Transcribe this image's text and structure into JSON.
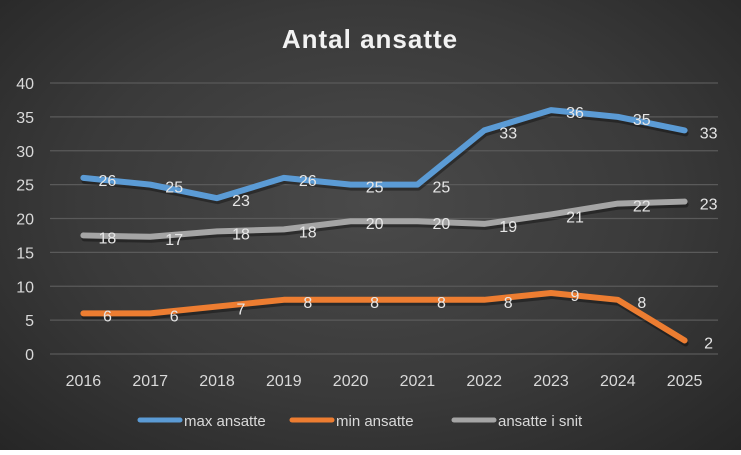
{
  "chart_data": {
    "type": "line",
    "title": "Antal ansatte",
    "xlabel": "",
    "ylabel": "",
    "ylim": [
      0,
      40
    ],
    "yticks": [
      0,
      5,
      10,
      15,
      20,
      25,
      30,
      35,
      40
    ],
    "grid": true,
    "legend": "bottom",
    "categories": [
      "2016",
      "2017",
      "2018",
      "2019",
      "2020",
      "2021",
      "2022",
      "2023",
      "2024",
      "2025"
    ],
    "series": [
      {
        "name": "max ansatte",
        "color": "#5b9bd5",
        "values": [
          26,
          25,
          23,
          26,
          25,
          25,
          33,
          36,
          35,
          33
        ],
        "labels": [
          "26",
          "25",
          "23",
          "26",
          "25",
          "25",
          "33",
          "36",
          "35",
          "33"
        ]
      },
      {
        "name": "min ansatte",
        "color": "#ed7d31",
        "values": [
          6,
          6,
          7,
          8,
          8,
          8,
          8,
          9,
          8,
          2
        ],
        "labels": [
          "6",
          "6",
          "7",
          "8",
          "8",
          "8",
          "8",
          "9",
          "8",
          "2"
        ]
      },
      {
        "name": "ansatte i snit",
        "color": "#a5a5a5",
        "values": [
          17.5,
          17.3,
          18.1,
          18.4,
          19.6,
          19.6,
          19.2,
          20.6,
          22.2,
          22.5
        ],
        "labels": [
          "18",
          "17",
          "18",
          "18",
          "20",
          "20",
          "19",
          "21",
          "22",
          "23"
        ]
      }
    ]
  }
}
